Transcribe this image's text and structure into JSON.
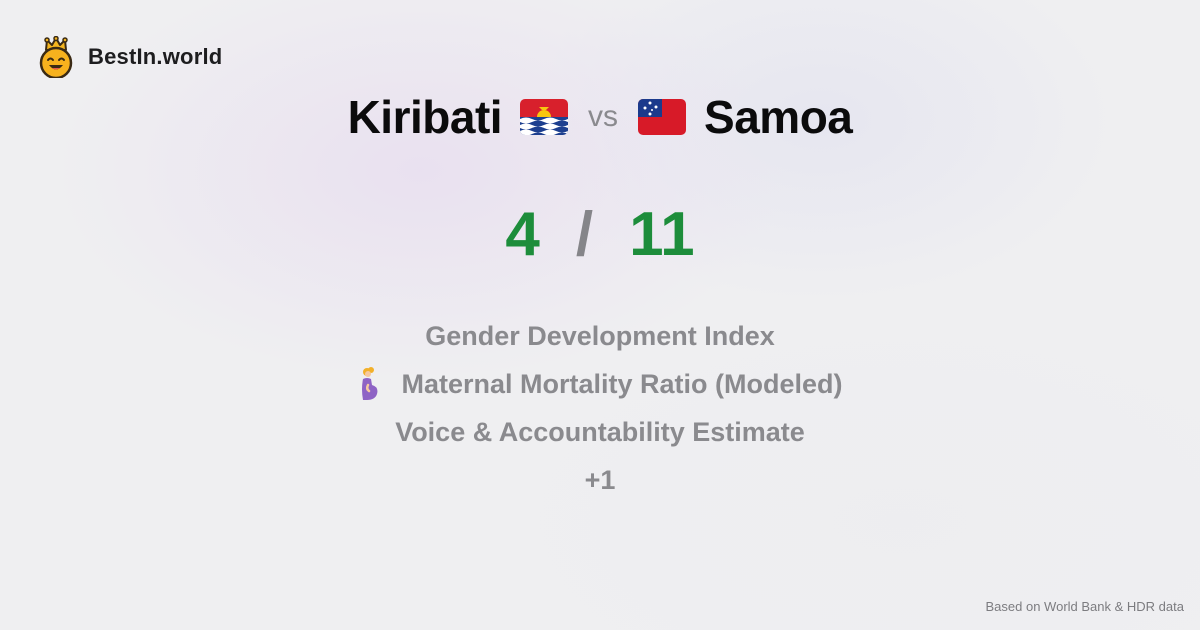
{
  "brand": {
    "name": "BestIn.world",
    "icon": "crowned-smiley-icon"
  },
  "comparison": {
    "left": {
      "name": "Kiribati",
      "flag": "kiribati-flag-icon"
    },
    "vs_label": "vs",
    "right": {
      "name": "Samoa",
      "flag": "samoa-flag-icon"
    }
  },
  "score": {
    "left": "4",
    "separator": "/",
    "right": "11",
    "color": "#1d8d3b"
  },
  "metrics": [
    {
      "label": "Gender Development Index"
    },
    {
      "label": "Maternal Mortality Ratio (Modeled)",
      "icon": "pregnant-woman-icon"
    },
    {
      "label": "Voice & Accountability Estimate"
    },
    {
      "label": "+1"
    }
  ],
  "footer": {
    "source": "Based on World Bank & HDR data"
  }
}
